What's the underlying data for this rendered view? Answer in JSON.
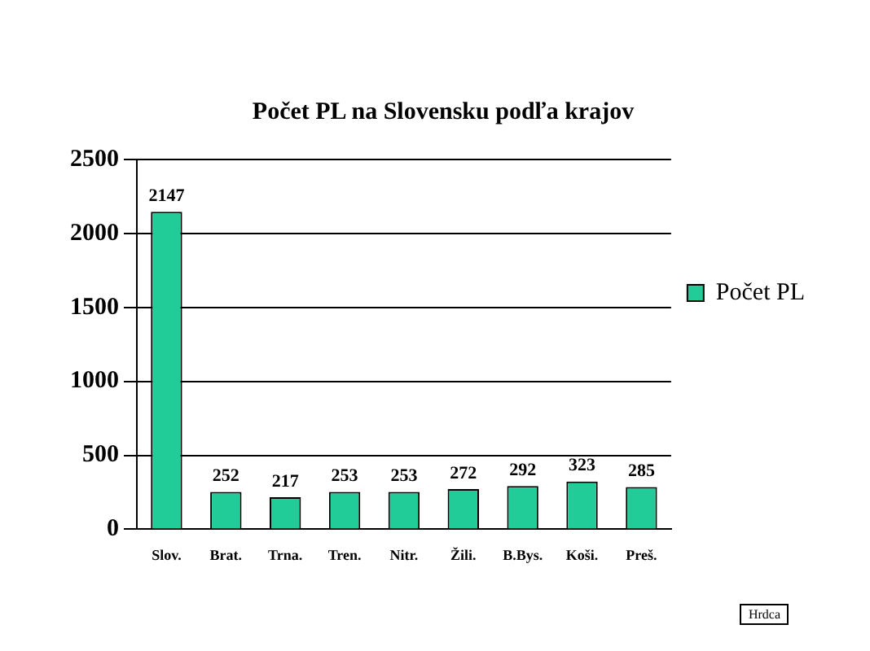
{
  "chart_data": {
    "type": "bar",
    "title": "Počet PL na Slovensku podľa krajov",
    "categories": [
      "Slov.",
      "Brat.",
      "Trna.",
      "Tren.",
      "Nitr.",
      "Žili.",
      "B.Bys.",
      "Koši.",
      "Preš."
    ],
    "series": [
      {
        "name": "Počet PL",
        "color": "#22cc99",
        "values": [
          2147,
          252,
          217,
          253,
          253,
          272,
          292,
          323,
          285
        ]
      }
    ],
    "ylim": [
      0,
      2500
    ],
    "yticks": [
      0,
      500,
      1000,
      1500,
      2000,
      2500
    ],
    "grid": "y",
    "legend": "right",
    "data_labels": true,
    "annotations": [
      "Hrdca"
    ]
  }
}
